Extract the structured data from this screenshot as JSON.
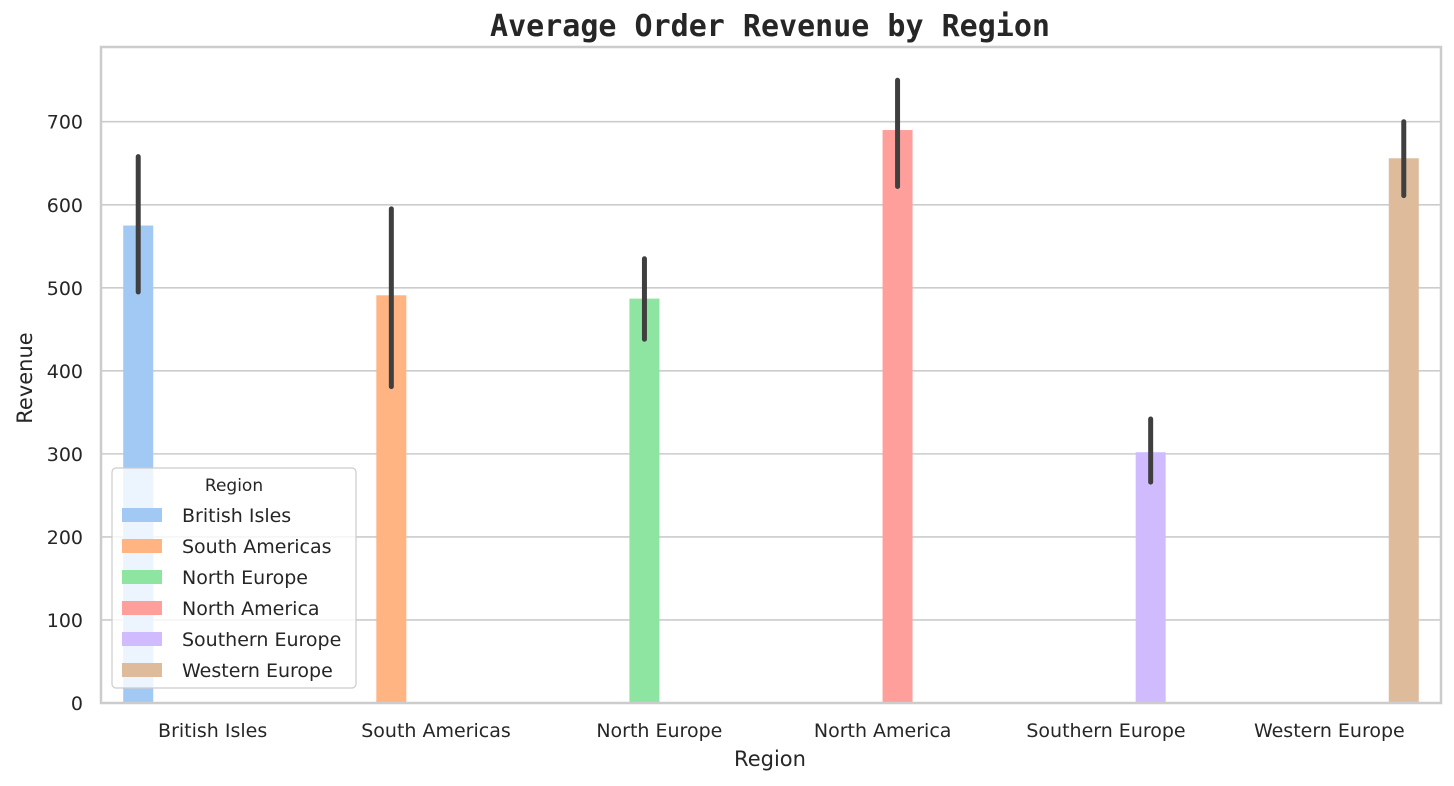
{
  "chart_data": {
    "type": "bar",
    "title": "Average Order Revenue by Region",
    "xlabel": "Region",
    "ylabel": "Revenue",
    "categories": [
      "British Isles",
      "South Americas",
      "North Europe",
      "North America",
      "Southern Europe",
      "Western Europe"
    ],
    "ylim": [
      0,
      790
    ],
    "yticks": [
      0,
      100,
      200,
      300,
      400,
      500,
      600,
      700
    ],
    "grid": "horizontal",
    "series": [
      {
        "name": "British Isles",
        "category": "British Isles",
        "value": 575,
        "ci": [
          495,
          658
        ],
        "color": "#a1c9f4"
      },
      {
        "name": "South Americas",
        "category": "South Americas",
        "value": 491,
        "ci": [
          381,
          595
        ],
        "color": "#ffb482"
      },
      {
        "name": "North Europe",
        "category": "North Europe",
        "value": 487,
        "ci": [
          438,
          535
        ],
        "color": "#8de5a1"
      },
      {
        "name": "North America",
        "category": "North America",
        "value": 690,
        "ci": [
          622,
          750
        ],
        "color": "#ff9f9b"
      },
      {
        "name": "Southern Europe",
        "category": "Southern Europe",
        "value": 302,
        "ci": [
          266,
          342
        ],
        "color": "#d0bbff"
      },
      {
        "name": "Western Europe",
        "category": "Western Europe",
        "value": 656,
        "ci": [
          611,
          700
        ],
        "color": "#debb9b"
      }
    ],
    "legend": {
      "title": "Region",
      "placement": "lower-left"
    }
  }
}
